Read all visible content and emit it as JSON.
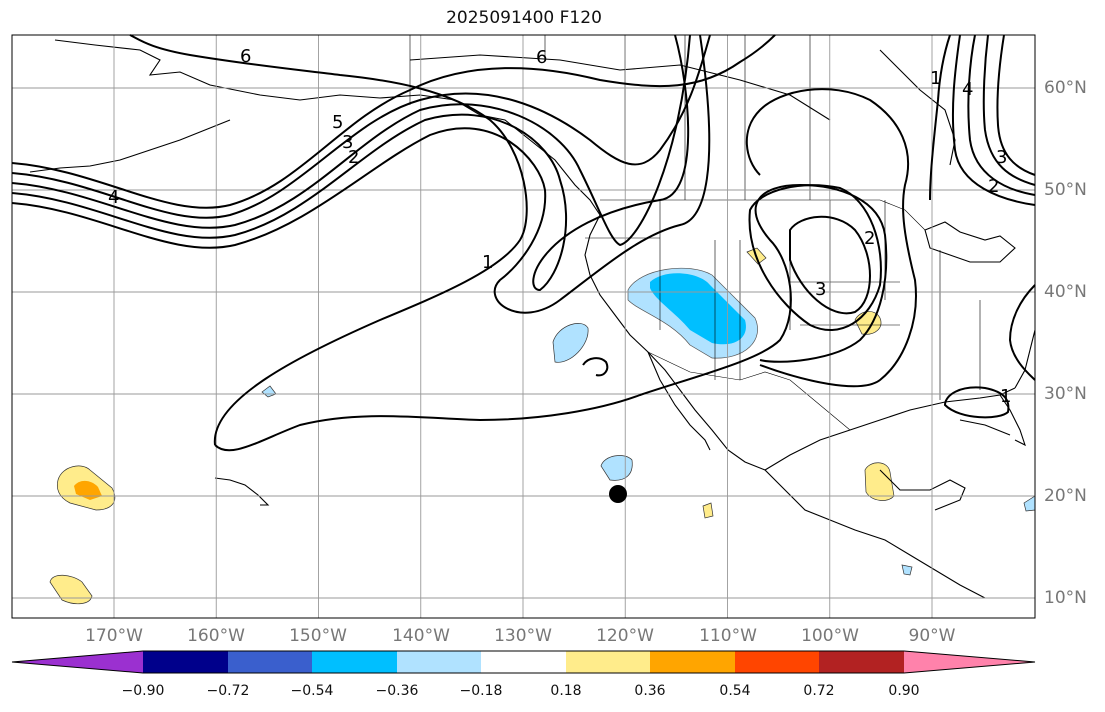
{
  "title": "2025091400 F120",
  "map": {
    "lon_range": [
      -180,
      -80
    ],
    "lat_range": [
      8,
      65
    ],
    "lon_labels": [
      "170°W",
      "160°W",
      "150°W",
      "140°W",
      "130°W",
      "120°W",
      "110°W",
      "100°W",
      "90°W"
    ],
    "lat_labels": [
      "60°N",
      "50°N",
      "40°N",
      "30°N",
      "20°N",
      "10°N"
    ],
    "contour_labels": [
      "6",
      "6",
      "5",
      "3",
      "2",
      "4",
      "1",
      "2",
      "3",
      "1",
      "1",
      "4",
      "3",
      "2"
    ],
    "marker": {
      "lon": -121,
      "lat": 20
    }
  },
  "colorbar": {
    "labels": [
      "−0.90",
      "−0.72",
      "−0.54",
      "−0.36",
      "−0.18",
      "0.18",
      "0.36",
      "0.54",
      "0.72",
      "0.90"
    ],
    "colors": [
      "#9b30d0",
      "#00008b",
      "#3a5fcd",
      "#00bfff",
      "#b0e2ff",
      "#ffffff",
      "#ffec8b",
      "#ffa500",
      "#ff4500",
      "#b22222",
      "#ff82ab"
    ]
  }
}
